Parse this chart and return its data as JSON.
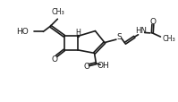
{
  "bg_color": "#ffffff",
  "line_color": "#1a1a1a",
  "lw": 1.2,
  "text_color": "#1a1a1a",
  "figsize": [
    1.99,
    1.15
  ],
  "dpi": 100,
  "xlim": [
    0,
    10
  ],
  "ylim": [
    0,
    5.5
  ]
}
